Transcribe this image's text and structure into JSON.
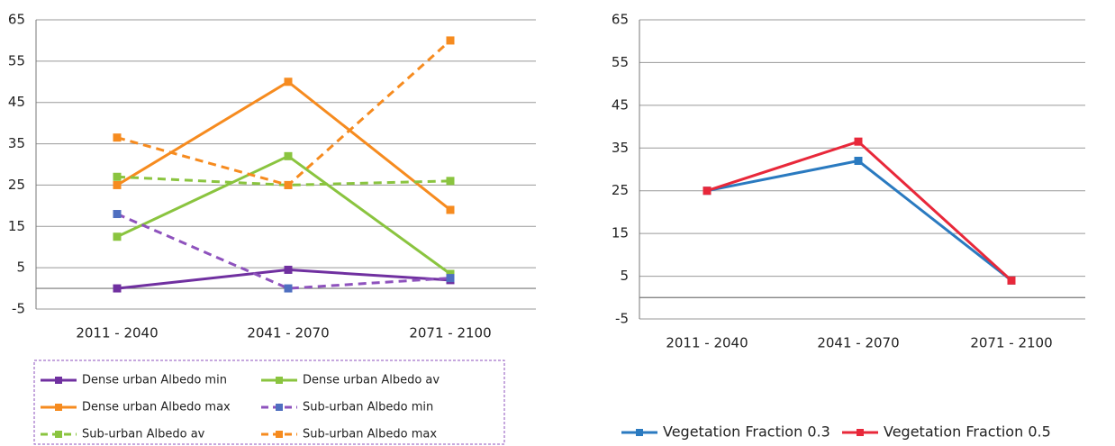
{
  "chart_data": [
    {
      "type": "line",
      "categories": [
        "2011 - 2040",
        "2041 - 2070",
        "2071 - 2100"
      ],
      "ylim": [
        -5,
        65
      ],
      "yticks": [
        -5,
        5,
        15,
        25,
        35,
        45,
        55,
        65
      ],
      "grid": true,
      "series": [
        {
          "name": "Dense urban Albedo min",
          "color": "#7030a0",
          "dashed": false,
          "values": [
            0,
            4.5,
            2
          ]
        },
        {
          "name": "Dense urban Albedo av",
          "color": "#8ac43f",
          "dashed": false,
          "values": [
            12.5,
            32,
            3.5
          ]
        },
        {
          "name": "Dense urban Albedo max",
          "color": "#f68b1f",
          "dashed": false,
          "values": [
            25,
            50,
            19
          ]
        },
        {
          "name": "Sub-urban Albedo min",
          "color": "#8e52bd",
          "marker_color": "#4f6fc0",
          "dashed": true,
          "values": [
            18,
            0,
            2.5
          ]
        },
        {
          "name": "Sub-urban Albedo av",
          "color": "#8ac43f",
          "dashed": true,
          "values": [
            27,
            25,
            26
          ]
        },
        {
          "name": "Sub-urban Albedo max",
          "color": "#f68b1f",
          "dashed": true,
          "values": [
            36.5,
            25,
            60
          ]
        }
      ]
    },
    {
      "type": "line",
      "categories": [
        "2011 - 2040",
        "2041 - 2070",
        "2071 - 2100"
      ],
      "ylim": [
        -5,
        65
      ],
      "yticks": [
        -5,
        5,
        15,
        25,
        35,
        45,
        55,
        65
      ],
      "grid": true,
      "series": [
        {
          "name": "Vegetation Fraction 0.3",
          "color": "#2a7ac0",
          "dashed": false,
          "values": [
            25,
            32,
            4
          ]
        },
        {
          "name": "Vegetation Fraction 0.5",
          "color": "#e8283a",
          "dashed": false,
          "values": [
            25,
            36.5,
            4
          ]
        }
      ]
    }
  ]
}
